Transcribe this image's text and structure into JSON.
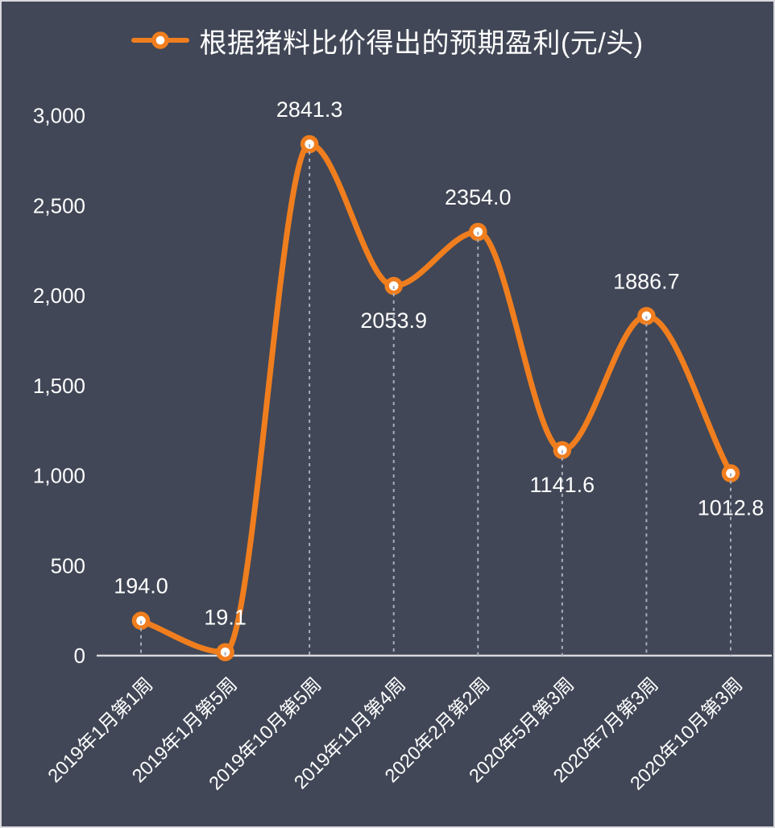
{
  "colors": {
    "background": "#414756",
    "border": "#d9dade",
    "line": "#f07e1e",
    "marker_fill": "#ffffff",
    "text": "#ffffff",
    "axis": "#d8d8dc",
    "dropline": "#a7adba"
  },
  "legend": {
    "series_label": "根据猪料比价得出的预期盈利(元/头)"
  },
  "chart_data": {
    "type": "line",
    "title": "根据猪料比价得出的预期盈利(元/头)",
    "categories": [
      "2019年1月第1周",
      "2019年1月第5周",
      "2019年10月第5周",
      "2019年11月第4周",
      "2020年2月第2周",
      "2020年5月第3周",
      "2020年7月第3周",
      "2020年10月第3周"
    ],
    "values": [
      194.0,
      19.1,
      2841.3,
      2053.9,
      2354.0,
      1141.6,
      1886.7,
      1012.8
    ],
    "data_labels": [
      "194.0",
      "19.1",
      "2841.3",
      "2053.9",
      "2354.0",
      "1141.6",
      "1886.7",
      "1012.8"
    ],
    "label_positions": [
      "above",
      "above",
      "above",
      "below",
      "above",
      "below",
      "above",
      "below"
    ],
    "xlabel": "",
    "ylabel": "",
    "ylim": [
      0,
      3000
    ],
    "ytick_interval": 500,
    "ytick_labels": [
      "0",
      "500",
      "1,000",
      "1,500",
      "2,000",
      "2,500",
      "3,000"
    ],
    "grid": false,
    "droplines": true,
    "smooth": true,
    "legend_position": "top",
    "x_labels_rotation_deg": -45
  }
}
